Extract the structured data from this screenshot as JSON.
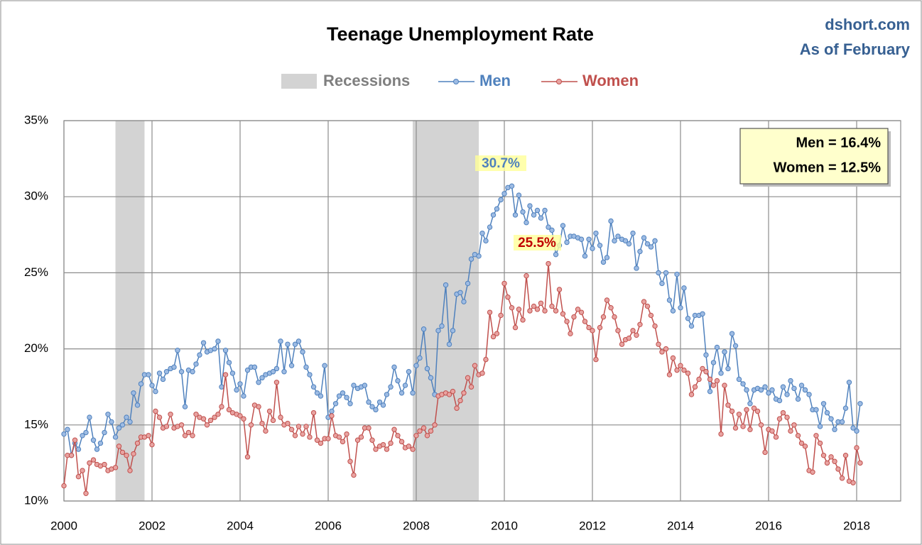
{
  "chart_data": {
    "type": "line",
    "title": "Teenage Unemployment Rate",
    "source": "dshort.com",
    "subtitle": "As of February",
    "recession_label": "Recessions",
    "recession_color": "#d3d3d3",
    "recessions": [
      [
        2001.17,
        2001.83
      ],
      [
        2007.92,
        2009.42
      ]
    ],
    "annotations": [
      "30.7%",
      "25.5%"
    ],
    "summary_box": [
      "Men = 16.4%",
      "Women = 12.5%"
    ],
    "xlim": [
      2000,
      2019
    ],
    "xticks": [
      2000,
      2002,
      2004,
      2006,
      2008,
      2010,
      2012,
      2014,
      2016,
      2018
    ],
    "ylim": [
      10,
      35
    ],
    "yticks": [
      {
        "value": 10,
        "label": "10%"
      },
      {
        "value": 15,
        "label": "15%"
      },
      {
        "value": 20,
        "label": "20%"
      },
      {
        "value": 25,
        "label": "25%"
      },
      {
        "value": 30,
        "label": "30%"
      },
      {
        "value": 35,
        "label": "35%"
      }
    ],
    "grid": true,
    "x": [
      2000,
      2000.08,
      2000.17,
      2000.25,
      2000.33,
      2000.42,
      2000.5,
      2000.58,
      2000.67,
      2000.75,
      2000.83,
      2000.92,
      2001,
      2001.08,
      2001.17,
      2001.25,
      2001.33,
      2001.42,
      2001.5,
      2001.58,
      2001.67,
      2001.75,
      2001.83,
      2001.92,
      2002,
      2002.08,
      2002.17,
      2002.25,
      2002.33,
      2002.42,
      2002.5,
      2002.58,
      2002.67,
      2002.75,
      2002.83,
      2002.92,
      2003,
      2003.08,
      2003.17,
      2003.25,
      2003.33,
      2003.42,
      2003.5,
      2003.58,
      2003.67,
      2003.75,
      2003.83,
      2003.92,
      2004,
      2004.08,
      2004.17,
      2004.25,
      2004.33,
      2004.42,
      2004.5,
      2004.58,
      2004.67,
      2004.75,
      2004.83,
      2004.92,
      2005,
      2005.08,
      2005.17,
      2005.25,
      2005.33,
      2005.42,
      2005.5,
      2005.58,
      2005.67,
      2005.75,
      2005.83,
      2005.92,
      2006,
      2006.08,
      2006.17,
      2006.25,
      2006.33,
      2006.42,
      2006.5,
      2006.58,
      2006.67,
      2006.75,
      2006.83,
      2006.92,
      2007,
      2007.08,
      2007.17,
      2007.25,
      2007.33,
      2007.42,
      2007.5,
      2007.58,
      2007.67,
      2007.75,
      2007.83,
      2007.92,
      2008,
      2008.08,
      2008.17,
      2008.25,
      2008.33,
      2008.42,
      2008.5,
      2008.58,
      2008.67,
      2008.75,
      2008.83,
      2008.92,
      2009,
      2009.08,
      2009.17,
      2009.25,
      2009.33,
      2009.42,
      2009.5,
      2009.58,
      2009.67,
      2009.75,
      2009.83,
      2009.92,
      2010,
      2010.08,
      2010.17,
      2010.25,
      2010.33,
      2010.42,
      2010.5,
      2010.58,
      2010.67,
      2010.75,
      2010.83,
      2010.92,
      2011,
      2011.08,
      2011.17,
      2011.25,
      2011.33,
      2011.42,
      2011.5,
      2011.58,
      2011.67,
      2011.75,
      2011.83,
      2011.92,
      2012,
      2012.08,
      2012.17,
      2012.25,
      2012.33,
      2012.42,
      2012.5,
      2012.58,
      2012.67,
      2012.75,
      2012.83,
      2012.92,
      2013,
      2013.08,
      2013.17,
      2013.25,
      2013.33,
      2013.42,
      2013.5,
      2013.58,
      2013.67,
      2013.75,
      2013.83,
      2013.92,
      2014,
      2014.08,
      2014.17,
      2014.25,
      2014.33,
      2014.42,
      2014.5,
      2014.58,
      2014.67,
      2014.75,
      2014.83,
      2014.92,
      2015,
      2015.08,
      2015.17,
      2015.25,
      2015.33,
      2015.42,
      2015.5,
      2015.58,
      2015.67,
      2015.75,
      2015.83,
      2015.92,
      2016,
      2016.08,
      2016.17,
      2016.25,
      2016.33,
      2016.42,
      2016.5,
      2016.58,
      2016.67,
      2016.75,
      2016.83,
      2016.92,
      2017,
      2017.08,
      2017.17,
      2017.25,
      2017.33,
      2017.42,
      2017.5,
      2017.58,
      2017.67,
      2017.75,
      2017.83,
      2017.92,
      2018,
      2018.08
    ],
    "series": [
      {
        "name": "Men",
        "color": "#4f81bd",
        "marker_color": "#9dbbe3",
        "values": [
          14.4,
          14.7,
          13.0,
          13.8,
          13.4,
          14.3,
          14.5,
          15.5,
          14.0,
          13.4,
          13.8,
          14.5,
          15.7,
          15.2,
          14.2,
          14.8,
          15.0,
          15.5,
          15.2,
          17.1,
          16.3,
          17.7,
          18.3,
          18.3,
          17.6,
          17.2,
          18.4,
          18.0,
          18.5,
          18.7,
          18.8,
          19.9,
          18.5,
          16.2,
          18.6,
          18.5,
          19.0,
          19.6,
          20.4,
          19.8,
          19.9,
          20.0,
          20.5,
          17.5,
          19.9,
          19.1,
          18.4,
          17.3,
          17.7,
          16.9,
          18.6,
          18.8,
          18.8,
          17.8,
          18.1,
          18.3,
          18.4,
          18.5,
          18.7,
          20.5,
          18.5,
          20.3,
          18.9,
          20.3,
          20.5,
          19.8,
          18.8,
          18.3,
          17.5,
          17.1,
          16.9,
          18.9,
          15.5,
          15.9,
          16.4,
          16.9,
          17.1,
          16.8,
          16.4,
          17.6,
          17.4,
          17.5,
          17.6,
          16.5,
          16.2,
          16.0,
          16.5,
          16.3,
          17.0,
          17.5,
          18.8,
          17.9,
          17.1,
          17.6,
          18.5,
          17.1,
          18.9,
          19.4,
          21.3,
          18.7,
          18.1,
          17.0,
          21.2,
          21.5,
          24.2,
          20.3,
          21.2,
          23.6,
          23.7,
          23.1,
          24.3,
          25.9,
          26.2,
          26.1,
          27.6,
          27.1,
          28.0,
          28.8,
          29.2,
          29.8,
          30.2,
          30.6,
          30.7,
          28.8,
          30.1,
          29.0,
          28.3,
          29.4,
          28.8,
          29.1,
          28.6,
          29.1,
          28.0,
          27.8,
          26.2,
          26.8,
          28.1,
          27.0,
          27.4,
          27.4,
          27.3,
          27.2,
          26.1,
          27.2,
          26.6,
          27.6,
          26.8,
          25.7,
          26.0,
          28.4,
          27.1,
          27.4,
          27.2,
          27.1,
          26.9,
          27.6,
          25.3,
          26.4,
          27.3,
          26.9,
          26.7,
          27.1,
          25.0,
          24.3,
          25.0,
          23.2,
          22.5,
          24.9,
          22.7,
          24.0,
          22.0,
          21.5,
          22.2,
          22.2,
          22.3,
          19.6,
          17.2,
          19.1,
          20.1,
          18.4,
          19.8,
          18.7,
          21.0,
          20.2,
          18.0,
          17.7,
          17.3,
          16.4,
          17.3,
          17.4,
          17.3,
          17.5,
          17.1,
          17.3,
          16.7,
          16.6,
          17.5,
          17.0,
          17.9,
          17.4,
          16.7,
          17.6,
          17.3,
          17.0,
          16.0,
          16.0,
          14.9,
          16.4,
          15.8,
          15.4,
          14.7,
          15.2,
          15.2,
          16.1,
          17.8,
          14.8,
          14.6,
          16.4
        ]
      },
      {
        "name": "Women",
        "color": "#c0504d",
        "marker_color": "#e8a3a1",
        "values": [
          11.0,
          13.0,
          13.0,
          14.0,
          11.6,
          12.0,
          10.5,
          12.5,
          12.7,
          12.4,
          12.3,
          12.4,
          12.0,
          12.1,
          12.2,
          13.6,
          13.2,
          13.0,
          12.0,
          13.1,
          13.8,
          14.2,
          14.2,
          14.3,
          13.7,
          15.9,
          15.5,
          14.8,
          14.9,
          15.7,
          14.8,
          14.9,
          15.0,
          14.3,
          14.5,
          14.3,
          15.7,
          15.5,
          15.4,
          15.0,
          15.3,
          15.5,
          15.7,
          16.2,
          18.3,
          16.0,
          15.8,
          15.7,
          15.6,
          15.4,
          12.9,
          15.0,
          16.3,
          16.2,
          15.1,
          14.6,
          15.9,
          15.3,
          17.8,
          15.5,
          15.0,
          15.1,
          14.7,
          14.3,
          14.9,
          14.4,
          14.9,
          14.2,
          15.8,
          14.0,
          13.8,
          14.1,
          14.1,
          15.6,
          14.3,
          14.2,
          13.9,
          14.4,
          12.6,
          11.7,
          14.0,
          14.2,
          14.8,
          14.8,
          14.0,
          13.4,
          13.6,
          13.7,
          13.4,
          13.8,
          14.7,
          14.3,
          13.9,
          13.5,
          13.6,
          13.4,
          14.3,
          14.6,
          14.8,
          14.3,
          14.6,
          15.0,
          16.9,
          17.0,
          17.1,
          17.0,
          17.2,
          16.1,
          16.6,
          17.1,
          18.1,
          17.5,
          18.9,
          18.3,
          18.4,
          19.3,
          22.4,
          20.8,
          21.0,
          22.2,
          24.3,
          23.4,
          22.7,
          21.4,
          22.6,
          21.9,
          24.8,
          22.5,
          22.8,
          22.6,
          23.0,
          22.5,
          25.6,
          22.8,
          22.5,
          23.9,
          22.3,
          21.8,
          21.0,
          22.1,
          22.6,
          22.4,
          21.8,
          21.4,
          21.2,
          19.3,
          21.4,
          22.1,
          23.2,
          22.7,
          22.1,
          21.2,
          20.3,
          20.6,
          20.7,
          21.2,
          20.9,
          21.6,
          23.1,
          22.8,
          22.2,
          21.5,
          20.3,
          19.8,
          20.0,
          18.3,
          19.4,
          18.6,
          18.9,
          18.6,
          18.4,
          17.0,
          17.5,
          18.0,
          18.7,
          18.5,
          18.0,
          17.6,
          17.9,
          14.4,
          17.6,
          16.3,
          15.9,
          14.8,
          15.7,
          14.9,
          16.0,
          14.7,
          16.1,
          15.9,
          15.0,
          13.2,
          14.7,
          14.6,
          14.2,
          15.4,
          15.8,
          15.5,
          14.6,
          15.0,
          14.3,
          13.8,
          13.6,
          12.0,
          11.9,
          14.3,
          13.8,
          13.0,
          12.5,
          12.9,
          12.6,
          12.1,
          11.5,
          13.0,
          11.3,
          11.2,
          13.5,
          12.5
        ]
      }
    ]
  }
}
